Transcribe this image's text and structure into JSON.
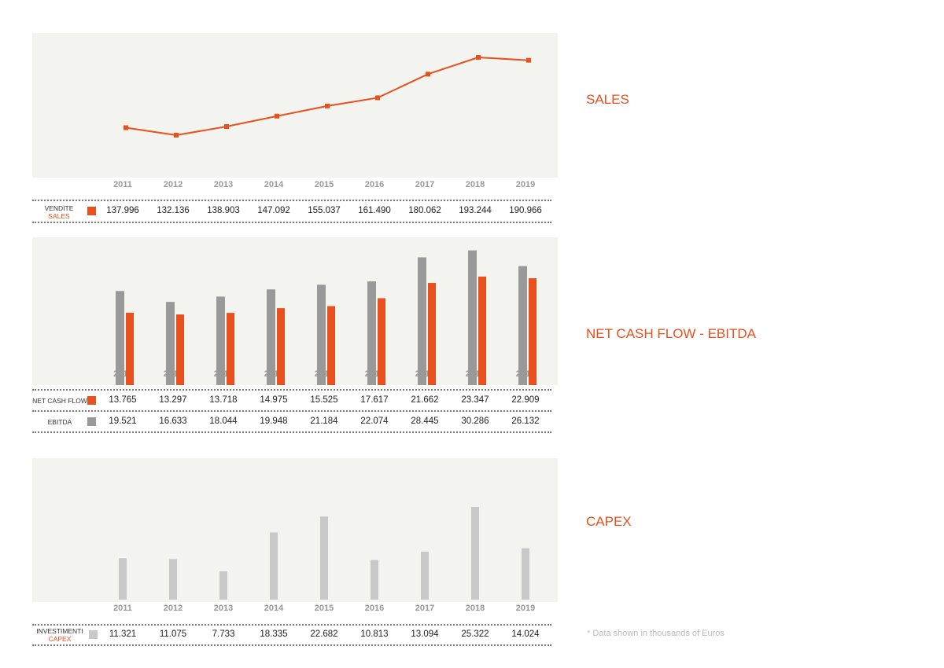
{
  "titles": {
    "sales": "SALES",
    "ncf": "NET CASH FLOW - EBITDA",
    "capex": "CAPEX"
  },
  "note": "* Data shown in thousands of Euros",
  "colors": {
    "orange": "#e8501e",
    "gray": "#999999",
    "light": "#c8c8c8"
  },
  "chart_data": [
    {
      "type": "line",
      "title": "SALES",
      "categories": [
        "2011",
        "2012",
        "2013",
        "2014",
        "2015",
        "2016",
        "2017",
        "2018",
        "2019"
      ],
      "series": [
        {
          "name": "VENDITE / SALES",
          "label_it": "VENDITE",
          "label_en": "SALES",
          "values": [
            137.996,
            132.136,
            138.903,
            147.092,
            155.037,
            161.49,
            180.062,
            193.244,
            190.966
          ],
          "display": [
            "137.996",
            "132.136",
            "138.903",
            "147.092",
            "155.037",
            "161.490",
            "180.062",
            "193.244",
            "190.966"
          ]
        }
      ]
    },
    {
      "type": "bar",
      "title": "NET CASH FLOW - EBITDA",
      "categories": [
        "2011",
        "2012",
        "2013",
        "2014",
        "2015",
        "2016",
        "2017",
        "2018",
        "2019"
      ],
      "series": [
        {
          "name": "NET CASH FLOW",
          "values": [
            13.765,
            13.297,
            13.718,
            14.975,
            15.525,
            17.617,
            21.662,
            23.347,
            22.909
          ],
          "display": [
            "13.765",
            "13.297",
            "13.718",
            "14.975",
            "15.525",
            "17.617",
            "21.662",
            "23.347",
            "22.909"
          ]
        },
        {
          "name": "EBITDA",
          "values": [
            19.521,
            16.633,
            18.044,
            19.948,
            21.184,
            22.074,
            28.445,
            30.286,
            26.132
          ],
          "display": [
            "19.521",
            "16.633",
            "18.044",
            "19.948",
            "21.184",
            "22.074",
            "28.445",
            "30.286",
            "26.132"
          ]
        }
      ]
    },
    {
      "type": "bar",
      "title": "CAPEX",
      "categories": [
        "2011",
        "2012",
        "2013",
        "2014",
        "2015",
        "2016",
        "2017",
        "2018",
        "2019"
      ],
      "series": [
        {
          "name": "INVESTIMENTI / CAPEX",
          "label_it": "INVESTIMENTI",
          "label_en": "CAPEX",
          "values": [
            11.321,
            11.075,
            7.733,
            18.335,
            22.682,
            10.813,
            13.094,
            25.322,
            14.024
          ],
          "display": [
            "11.321",
            "11.075",
            "7.733",
            "18.335",
            "22.682",
            "10.813",
            "13.094",
            "25.322",
            "14.024"
          ]
        }
      ]
    }
  ]
}
